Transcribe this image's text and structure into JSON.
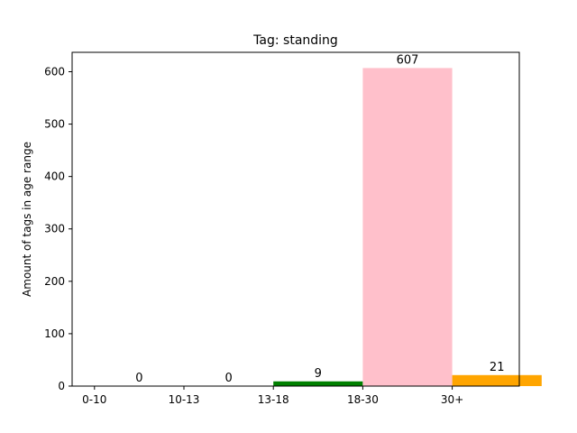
{
  "chart_data": {
    "type": "bar",
    "title": "Tag: standing",
    "xlabel": "",
    "ylabel": "Amount of tags in age range",
    "categories": [
      "0-10",
      "10-13",
      "13-18",
      "18-30",
      "30+"
    ],
    "values": [
      0,
      0,
      9,
      607,
      21
    ],
    "colors": [
      "#1f77b4",
      "#ff7f0e",
      "#008000",
      "#ffc0cb",
      "#ffa500"
    ],
    "ylim": [
      0,
      637
    ],
    "yticks": [
      0,
      100,
      200,
      300,
      400,
      500,
      600
    ],
    "bar_alignment": "edge",
    "grid": false
  }
}
